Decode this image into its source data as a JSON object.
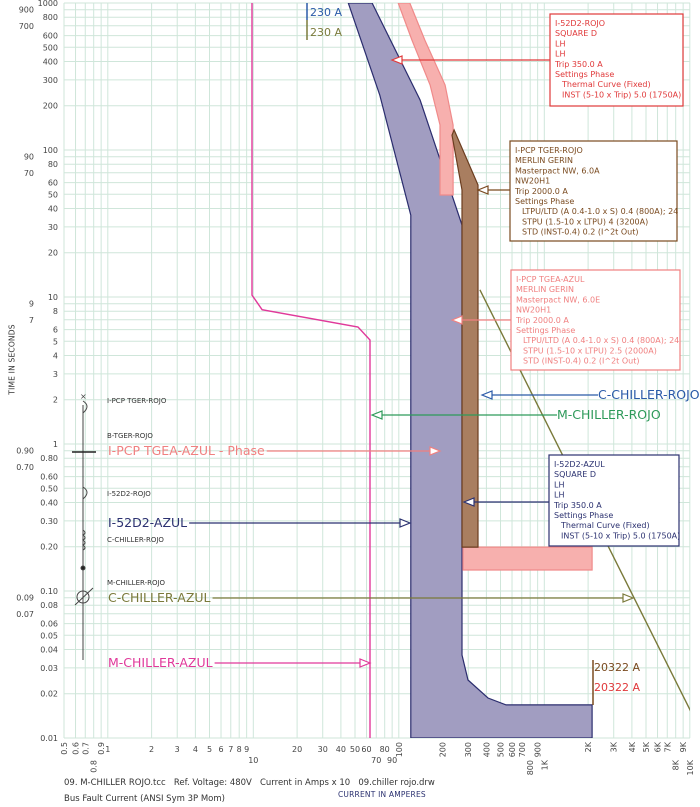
{
  "chart_data": {
    "type": "line",
    "xlabel": "CURRENT IN AMPERES",
    "ylabel": "TIME IN SECONDS",
    "xscale": "log",
    "yscale": "log",
    "xlim": [
      0.5,
      10000
    ],
    "ylim": [
      0.01,
      1000
    ],
    "grid": true,
    "x_ticks": [
      {
        "v": 0.5,
        "l": "0.5",
        "r": true
      },
      {
        "v": 0.6,
        "l": "0.6",
        "r": true
      },
      {
        "v": 0.7,
        "l": "0.7",
        "r": true
      },
      {
        "v": 0.8,
        "l": "0.8",
        "r": true
      },
      {
        "v": 0.9,
        "l": "0.9",
        "r": true
      },
      {
        "v": 1,
        "l": "1"
      },
      {
        "v": 2,
        "l": "2"
      },
      {
        "v": 3,
        "l": "3"
      },
      {
        "v": 4,
        "l": "4"
      },
      {
        "v": 5,
        "l": "5"
      },
      {
        "v": 6,
        "l": "6"
      },
      {
        "v": 7,
        "l": "7"
      },
      {
        "v": 8,
        "l": "8"
      },
      {
        "v": 9,
        "l": "9"
      },
      {
        "v": 10,
        "l": "10"
      },
      {
        "v": 20,
        "l": "20"
      },
      {
        "v": 30,
        "l": "30"
      },
      {
        "v": 40,
        "l": "40"
      },
      {
        "v": 50,
        "l": "50"
      },
      {
        "v": 60,
        "l": "60"
      },
      {
        "v": 70,
        "l": "70"
      },
      {
        "v": 80,
        "l": "80"
      },
      {
        "v": 90,
        "l": "90"
      },
      {
        "v": 100,
        "l": "100",
        "r": true
      },
      {
        "v": 200,
        "l": "200",
        "r": true
      },
      {
        "v": 300,
        "l": "300",
        "r": true
      },
      {
        "v": 400,
        "l": "400",
        "r": true
      },
      {
        "v": 500,
        "l": "500",
        "r": true
      },
      {
        "v": 600,
        "l": "600",
        "r": true
      },
      {
        "v": 700,
        "l": "700",
        "r": true
      },
      {
        "v": 800,
        "l": "800",
        "r": true
      },
      {
        "v": 900,
        "l": "900",
        "r": true
      },
      {
        "v": 1000,
        "l": "1K",
        "r": true
      },
      {
        "v": 2000,
        "l": "2K",
        "r": true
      },
      {
        "v": 3000,
        "l": "3K",
        "r": true
      },
      {
        "v": 4000,
        "l": "4K",
        "r": true
      },
      {
        "v": 5000,
        "l": "5K",
        "r": true
      },
      {
        "v": 6000,
        "l": "6K",
        "r": true
      },
      {
        "v": 7000,
        "l": "7K",
        "r": true
      },
      {
        "v": 8000,
        "l": "8K",
        "r": true
      },
      {
        "v": 9000,
        "l": "9K",
        "r": true
      },
      {
        "v": 10000,
        "l": "10K",
        "r": true
      }
    ],
    "y_ticks": [
      {
        "v": 1000,
        "l": "1000"
      },
      {
        "v": 900,
        "l": "900"
      },
      {
        "v": 800,
        "l": "800"
      },
      {
        "v": 700,
        "l": "700"
      },
      {
        "v": 600,
        "l": "600"
      },
      {
        "v": 500,
        "l": "500"
      },
      {
        "v": 400,
        "l": "400"
      },
      {
        "v": 300,
        "l": "300"
      },
      {
        "v": 200,
        "l": "200"
      },
      {
        "v": 100,
        "l": "100"
      },
      {
        "v": 90,
        "l": "90"
      },
      {
        "v": 80,
        "l": "80"
      },
      {
        "v": 70,
        "l": "70"
      },
      {
        "v": 60,
        "l": "60"
      },
      {
        "v": 50,
        "l": "50"
      },
      {
        "v": 40,
        "l": "40"
      },
      {
        "v": 30,
        "l": "30"
      },
      {
        "v": 20,
        "l": "20"
      },
      {
        "v": 10,
        "l": "10"
      },
      {
        "v": 9,
        "l": "9"
      },
      {
        "v": 8,
        "l": "8"
      },
      {
        "v": 7,
        "l": "7"
      },
      {
        "v": 6,
        "l": "6"
      },
      {
        "v": 5,
        "l": "5"
      },
      {
        "v": 4,
        "l": "4"
      },
      {
        "v": 3,
        "l": "3"
      },
      {
        "v": 2,
        "l": "2"
      },
      {
        "v": 1,
        "l": "1"
      },
      {
        "v": 0.9,
        "l": "0.90"
      },
      {
        "v": 0.8,
        "l": "0.80"
      },
      {
        "v": 0.7,
        "l": "0.70"
      },
      {
        "v": 0.6,
        "l": "0.60"
      },
      {
        "v": 0.5,
        "l": "0.50"
      },
      {
        "v": 0.4,
        "l": "0.40"
      },
      {
        "v": 0.3,
        "l": "0.30"
      },
      {
        "v": 0.2,
        "l": "0.20"
      },
      {
        "v": 0.1,
        "l": "0.10"
      },
      {
        "v": 0.09,
        "l": "0.09"
      },
      {
        "v": 0.08,
        "l": "0.08"
      },
      {
        "v": 0.07,
        "l": "0.07"
      },
      {
        "v": 0.06,
        "l": "0.06"
      },
      {
        "v": 0.05,
        "l": "0.05"
      },
      {
        "v": 0.04,
        "l": "0.04"
      },
      {
        "v": 0.03,
        "l": "0.03"
      },
      {
        "v": 0.02,
        "l": "0.02"
      },
      {
        "v": 0.01,
        "l": "0.01"
      }
    ],
    "series": [
      {
        "name": "I-52D2-AZUL",
        "kind": "band",
        "fill": "#a19dc1",
        "stroke": "#2b2d6e",
        "points": [
          [
            45,
            1000
          ],
          [
            74,
            236
          ],
          [
            121,
            36
          ],
          [
            121,
            0.01
          ],
          [
            2130,
            0.01
          ],
          [
            2130,
            0.0168
          ],
          [
            546,
            0.0168
          ],
          [
            410,
            0.0187
          ],
          [
            299,
            0.0248
          ],
          [
            272,
            0.0367
          ],
          [
            272,
            30.9
          ],
          [
            140,
            219
          ],
          [
            65.5,
            1000
          ]
        ]
      },
      {
        "name": "I-52D2-ROJO",
        "kind": "band",
        "fill": "#f7b0ae",
        "stroke": "#f08a8a",
        "points": [
          [
            99,
            1000
          ],
          [
            123,
            560
          ],
          [
            164,
            277
          ],
          [
            192,
            148
          ],
          [
            192,
            49.4
          ],
          [
            236,
            49.4
          ],
          [
            236,
            148
          ],
          [
            208,
            277
          ],
          [
            151,
            560
          ],
          [
            119,
            1000
          ]
        ]
      },
      {
        "name": "I-52D2-ROJO INST",
        "kind": "band",
        "fill": "#f7b0ae",
        "stroke": "#f08a8a",
        "points": [
          [
            276,
            0.199
          ],
          [
            2130,
            0.199
          ],
          [
            2130,
            0.139
          ],
          [
            276,
            0.139
          ]
        ]
      },
      {
        "name": "I-PCP TGER-ROJO",
        "kind": "band",
        "fill": "#a97e60",
        "stroke": "#6b3d1f",
        "points": [
          [
            232,
            126
          ],
          [
            272,
            53.5
          ],
          [
            272,
            0.199
          ],
          [
            350,
            0.199
          ],
          [
            350,
            57.8
          ],
          [
            240,
            137
          ]
        ]
      },
      {
        "name": "M-CHILLER-AZUL",
        "kind": "line",
        "stroke": "#e0399a",
        "points": [
          [
            9.8,
            1000
          ],
          [
            9.8,
            10.3
          ],
          [
            11.5,
            8.2
          ],
          [
            52.4,
            6.25
          ],
          [
            63.4,
            5.1
          ],
          [
            63.4,
            0.01
          ]
        ]
      },
      {
        "name": "C-CHILLER-AZUL",
        "kind": "line",
        "stroke": "#7a7a3a",
        "points": [
          [
            361,
            11.2
          ],
          [
            10860,
            0.0133
          ]
        ]
      }
    ],
    "markers": [
      {
        "label": "230 A",
        "color": "#2a5aa8",
        "amps": 41.5
      },
      {
        "label": "230 A",
        "color": "#7a7a3a",
        "amps": 41.5
      },
      {
        "label": "20322 A",
        "color": "#7a4a1f",
        "amps": 2130
      },
      {
        "label": "20322 A",
        "color": "#e0393a",
        "amps": 2130
      }
    ],
    "annotations": [
      {
        "lines": [
          "I-52D2-ROJO",
          "SQUARE D",
          "LH",
          "LH",
          "Trip 350.0 A",
          "Settings Phase",
          "   Thermal Curve (Fixed)",
          "   INST (5-10 x Trip) 5.0 (1750A)"
        ],
        "color": "#e0393a"
      },
      {
        "lines": [
          "I-PCP TGER-ROJO",
          "MERLIN GERIN",
          "Masterpact NW, 6.0A",
          "NW20H1",
          "Trip 2000.0 A",
          "Settings Phase",
          "   LTPU/LTD (A 0.4-1.0 x S) 0.4 (800A); 24",
          "   STPU (1.5-10 x LTPU) 4 (3200A)",
          "   STD (INST-0.4) 0.2 (I^2t Out)"
        ],
        "color": "#7a4a1f"
      },
      {
        "lines": [
          "I-PCP TGEA-AZUL",
          "MERLIN GERIN",
          "Masterpact NW, 6.0E",
          "NW20H1",
          "Trip 2000.0 A",
          "Settings Phase",
          "   LTPU/LTD (A 0.4-1.0 x S) 0.4 (800A); 24",
          "   STPU (1.5-10 x LTPU) 2.5 (2000A)",
          "   STD (INST-0.4) 0.2 (I^2t Out)"
        ],
        "color": "#f08080"
      },
      {
        "lines": [
          "I-52D2-AZUL",
          "SQUARE D",
          "LH",
          "LH",
          "Trip 350.0 A",
          "Settings Phase",
          "   Thermal Curve (Fixed)",
          "   INST (5-10 x Trip) 5.0 (1750A)"
        ],
        "color": "#2b3170"
      }
    ],
    "labels": [
      {
        "text": "C-CHILLER-ROJO",
        "color": "#2a5aa8"
      },
      {
        "text": "M-CHILLER-ROJO",
        "color": "#2e9a5a"
      },
      {
        "text": "I-PCP TGEA-AZUL - Phase",
        "color": "#f08080"
      },
      {
        "text": "I-52D2-AZUL",
        "color": "#2b3170"
      },
      {
        "text": "C-CHILLER-AZUL",
        "color": "#7a7a3a"
      },
      {
        "text": "M-CHILLER-AZUL",
        "color": "#e0399a"
      }
    ],
    "one_line": [
      "I-PCP TGER-ROJO",
      "B-TGER-ROJO",
      "I-52D2-ROJO",
      "C-CHILLER-ROJO",
      "M-CHILLER-ROJO"
    ]
  },
  "footer": {
    "line1": "09. M-CHILLER ROJO.tcc   Ref. Voltage: 480V   Current in Amps x 10   09.chiller rojo.drw",
    "line2": "Bus Fault Current (ANSI Sym 3P Mom)",
    "xlabel": "CURRENT IN AMPERES",
    "ylabel": "TIME IN SECONDS"
  },
  "colors": {
    "grid": "#cfe6da",
    "axis_text": "#444444"
  }
}
